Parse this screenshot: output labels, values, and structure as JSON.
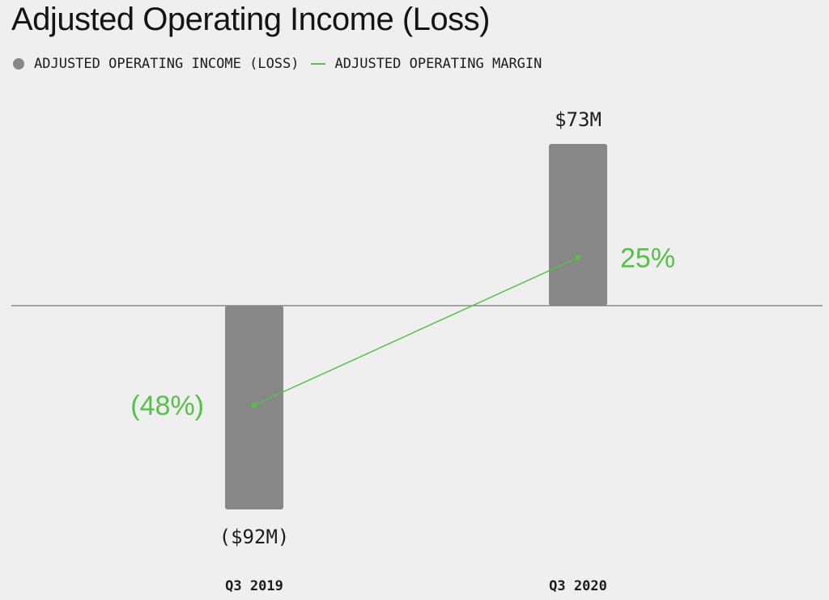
{
  "colors": {
    "bar": "#878787",
    "line": "#54c247",
    "axis": "#8a8a8a",
    "text": "#1c1c1c"
  },
  "chart_data": {
    "type": "bar",
    "title": "Adjusted Operating Income (Loss)",
    "legend": {
      "placement": "top-left",
      "items": [
        {
          "label": "ADJUSTED OPERATING INCOME (LOSS)",
          "marker": "dot"
        },
        {
          "label": "ADJUSTED OPERATING MARGIN",
          "marker": "line"
        }
      ]
    },
    "categories": [
      "Q3 2019",
      "Q3 2020"
    ],
    "series": [
      {
        "name": "ADJUSTED OPERATING INCOME (LOSS)",
        "type": "bar",
        "unit": "$M",
        "values": [
          -92,
          73
        ],
        "data_labels": [
          "($92M)",
          "$73M"
        ]
      },
      {
        "name": "ADJUSTED OPERATING MARGIN",
        "type": "line",
        "unit": "%",
        "values": [
          -48,
          25
        ],
        "data_labels": [
          "(48%)",
          "25%"
        ]
      }
    ],
    "grid": false
  }
}
